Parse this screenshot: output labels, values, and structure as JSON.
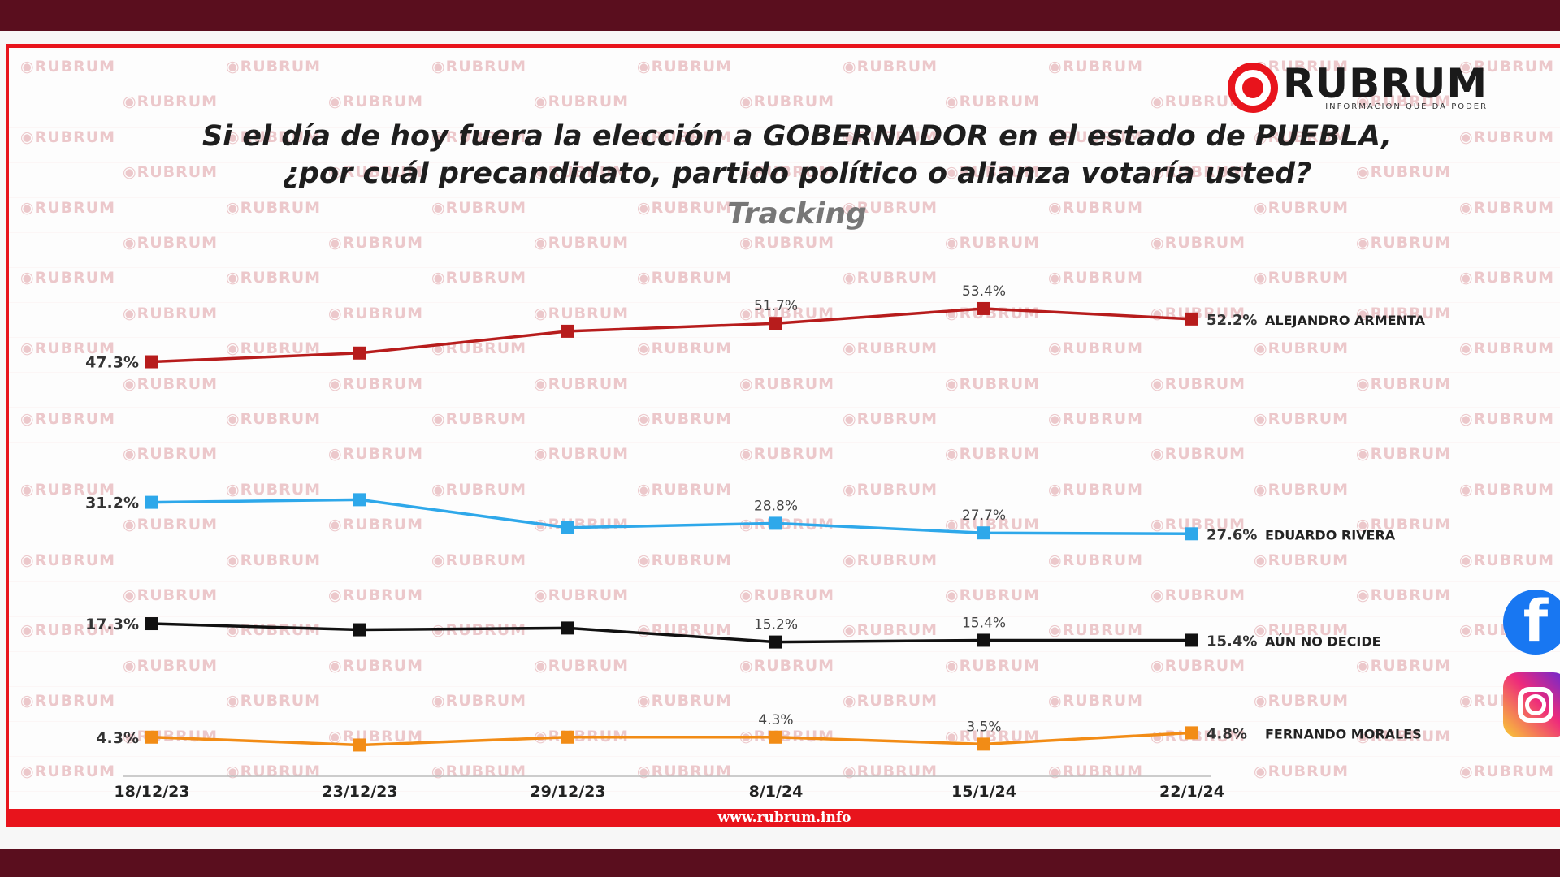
{
  "header": {
    "title_line1": "Si el día de hoy fuera la elección a GOBERNADOR en el estado de PUEBLA,",
    "title_line2": "¿por cuál precandidato, partido político o alianza votaría usted?",
    "subtitle": "Tracking"
  },
  "brand": {
    "name": "RUBRUM",
    "tagline": "INFORMACIÓN QUE DA PODER",
    "watermark": "RUBRUM",
    "url": "www.rubrum.info"
  },
  "chart_data": {
    "type": "line",
    "title": "Si el día de hoy fuera la elección a GOBERNADOR en el estado de PUEBLA, ¿por cuál precandidato, partido político o alianza votaría usted?",
    "subtitle": "Tracking",
    "x": [
      "18/12/23",
      "23/12/23",
      "29/12/23",
      "8/1/24",
      "15/1/24",
      "22/1/24"
    ],
    "ylim": [
      0,
      60
    ],
    "grid": false,
    "legend": "right-end labels",
    "series": [
      {
        "name": "ALEJANDRO ARMENTA",
        "color": "#b71c1c",
        "values": [
          47.3,
          48.3,
          50.8,
          51.7,
          53.4,
          52.2
        ],
        "labels": [
          "47.3%",
          "",
          "",
          "51.7%",
          "53.4%",
          "52.2%"
        ]
      },
      {
        "name": "EDUARDO RIVERA",
        "color": "#2ea8ea",
        "values": [
          31.2,
          31.5,
          28.3,
          28.8,
          27.7,
          27.6
        ],
        "labels": [
          "31.2%",
          "",
          "",
          "28.8%",
          "27.7%",
          "27.6%"
        ]
      },
      {
        "name": "AÚN NO DECIDE",
        "color": "#111111",
        "values": [
          17.3,
          16.6,
          16.8,
          15.2,
          15.4,
          15.4
        ],
        "labels": [
          "17.3%",
          "",
          "",
          "15.2%",
          "15.4%",
          "15.4%"
        ]
      },
      {
        "name": "FERNANDO MORALES",
        "color": "#f28c16",
        "values": [
          4.3,
          3.4,
          4.3,
          4.3,
          3.5,
          4.8
        ],
        "labels": [
          "4.3%",
          "",
          "",
          "4.3%",
          "3.5%",
          "4.8%"
        ]
      }
    ]
  },
  "social": {
    "facebook_icon": "facebook-icon",
    "facebook_glyph": "f",
    "instagram_icon": "instagram-icon"
  }
}
